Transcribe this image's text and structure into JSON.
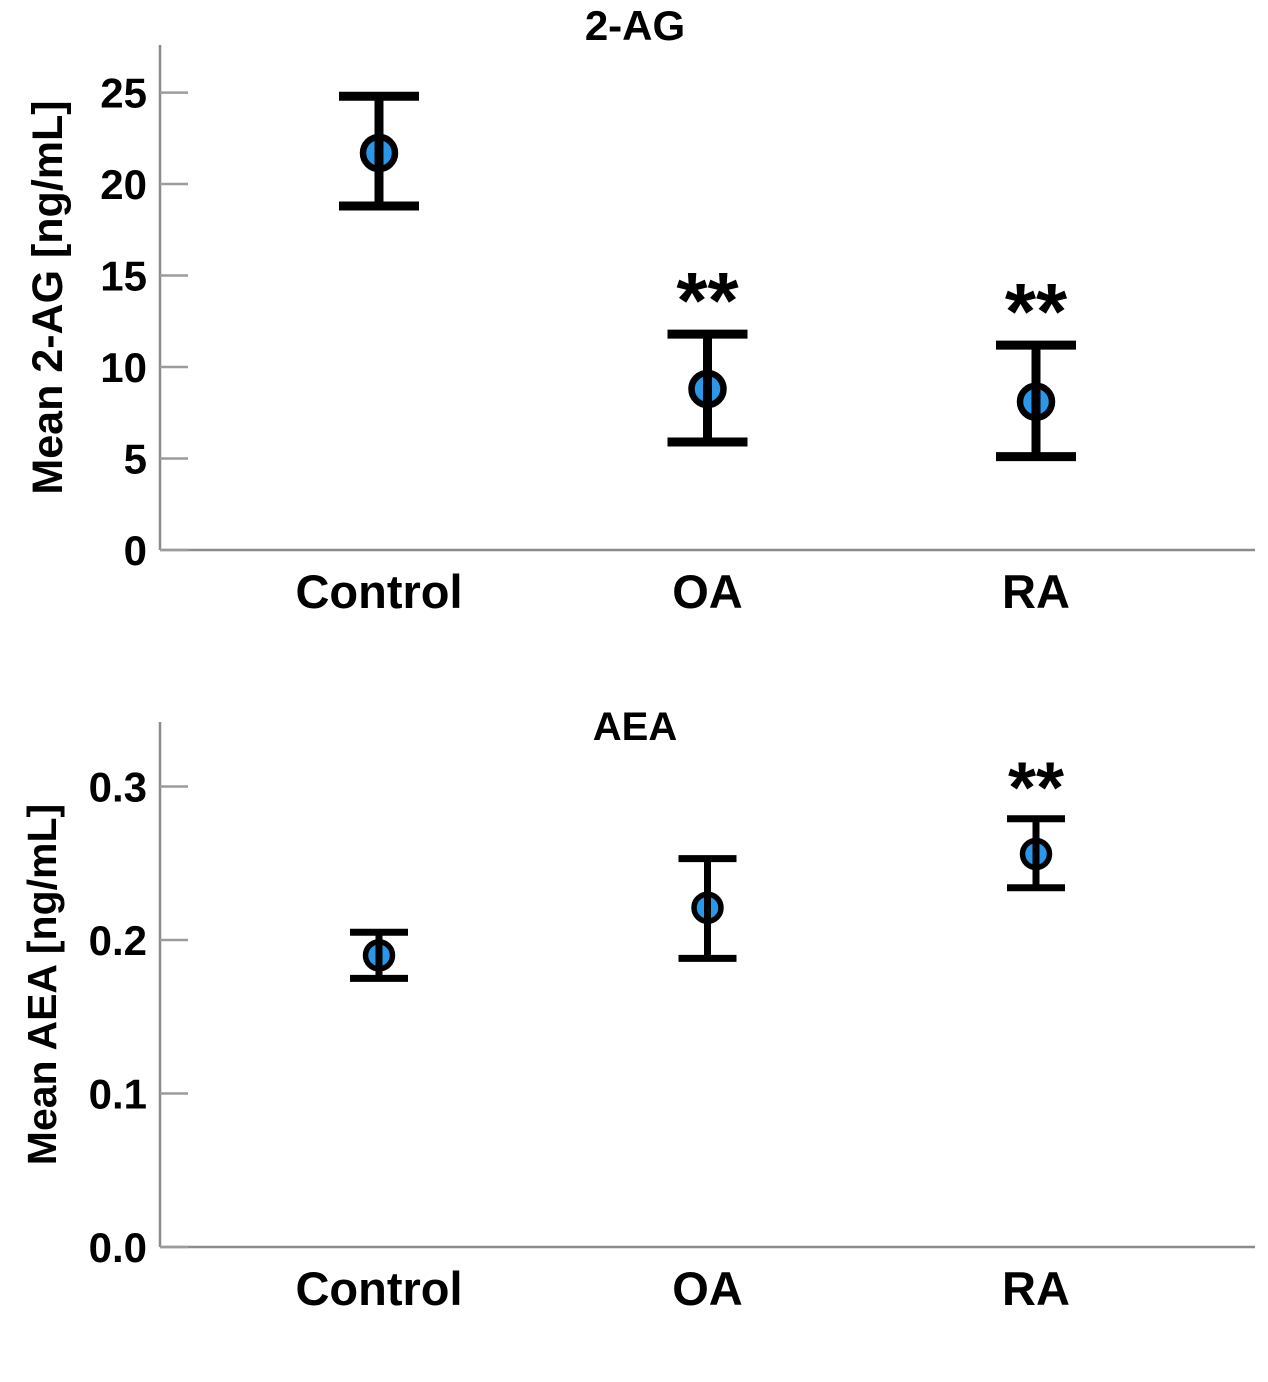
{
  "colors": {
    "background": "#FFFFFF",
    "marker_fill": "#2B97E8",
    "marker_stroke": "#000000",
    "error_bar": "#000000",
    "axis": "#8C8C8C",
    "tick": "#9C9C9C",
    "text": "#000000"
  },
  "chart_data": [
    {
      "type": "scatter",
      "subtype": "point-with-error-bars",
      "title": "2-AG",
      "ylabel": "Mean 2-AG [ng/mL]",
      "xlabel": "",
      "categories": [
        "Control",
        "OA",
        "RA"
      ],
      "points": [
        {
          "category": "Control",
          "mean": 21.7,
          "err_low": 18.8,
          "err_high": 24.8,
          "significance": ""
        },
        {
          "category": "OA",
          "mean": 8.8,
          "err_low": 5.9,
          "err_high": 11.8,
          "significance": "**"
        },
        {
          "category": "RA",
          "mean": 8.1,
          "err_low": 5.1,
          "err_high": 11.2,
          "significance": "**"
        }
      ],
      "yticks": [
        {
          "value": 0,
          "label": "0"
        },
        {
          "value": 5,
          "label": "5"
        },
        {
          "value": 10,
          "label": "10"
        },
        {
          "value": 15,
          "label": "15"
        },
        {
          "value": 20,
          "label": "20"
        },
        {
          "value": 25,
          "label": "25"
        }
      ],
      "ylim": [
        0,
        27.6
      ],
      "grid": false,
      "legend": null
    },
    {
      "type": "scatter",
      "subtype": "point-with-error-bars",
      "title": "AEA",
      "ylabel": "Mean AEA [ng/mL]",
      "xlabel": "",
      "categories": [
        "Control",
        "OA",
        "RA"
      ],
      "points": [
        {
          "category": "Control",
          "mean": 0.19,
          "err_low": 0.175,
          "err_high": 0.205,
          "significance": ""
        },
        {
          "category": "OA",
          "mean": 0.221,
          "err_low": 0.188,
          "err_high": 0.253,
          "significance": ""
        },
        {
          "category": "RA",
          "mean": 0.256,
          "err_low": 0.234,
          "err_high": 0.279,
          "significance": "**"
        }
      ],
      "yticks": [
        {
          "value": 0.0,
          "label": "0.0"
        },
        {
          "value": 0.1,
          "label": "0.1"
        },
        {
          "value": 0.2,
          "label": "0.2"
        },
        {
          "value": 0.3,
          "label": "0.3"
        }
      ],
      "ylim": [
        0,
        0.342
      ],
      "grid": false,
      "legend": null
    }
  ]
}
